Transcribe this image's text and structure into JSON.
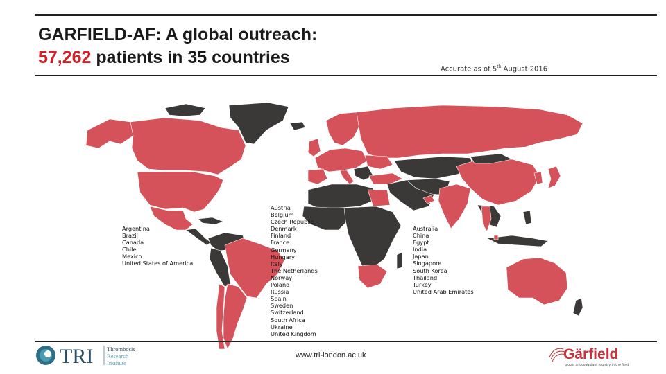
{
  "title": {
    "line1": "GARFIELD-AF: A global outreach:",
    "patients": "57,262",
    "line2_rest": " patients in 35 countries"
  },
  "accuracy": {
    "text": "Accurate as of 5",
    "suffix": "th",
    "rest": " August 2016"
  },
  "colors": {
    "participating": "#d6525a",
    "other": "#3b3838",
    "accent": "#cc2229"
  },
  "countries": {
    "americas": [
      "Argentina",
      "Brazil",
      "Canada",
      "Chile",
      "Mexico",
      "United States of America"
    ],
    "europe_africa": [
      "Austria",
      "Belgium",
      "Czech Republic",
      "Denmark",
      "Finland",
      "France",
      "Germany",
      "Hungary",
      "Italy",
      "The Netherlands",
      "Norway",
      "Poland",
      "Russia",
      "Spain",
      "Sweden",
      "Switzerland",
      "South Africa",
      "Ukraine",
      "United Kingdom"
    ],
    "asia_pacific": [
      "Australia",
      "China",
      "Egypt",
      "India",
      "Japan",
      "Singapore",
      "South Korea",
      "Thailand",
      "Turkey",
      "United Arab Emirates"
    ]
  },
  "footer": {
    "url": "www.tri-london.ac.uk",
    "tri": {
      "acronym": "TRI",
      "name_line1": "Thrombosis",
      "name_line2": "Research",
      "name_line3": "Institute"
    },
    "garfield": {
      "wordmark": "Gärfield",
      "tagline": "global anticoagulant registry in the field"
    }
  }
}
